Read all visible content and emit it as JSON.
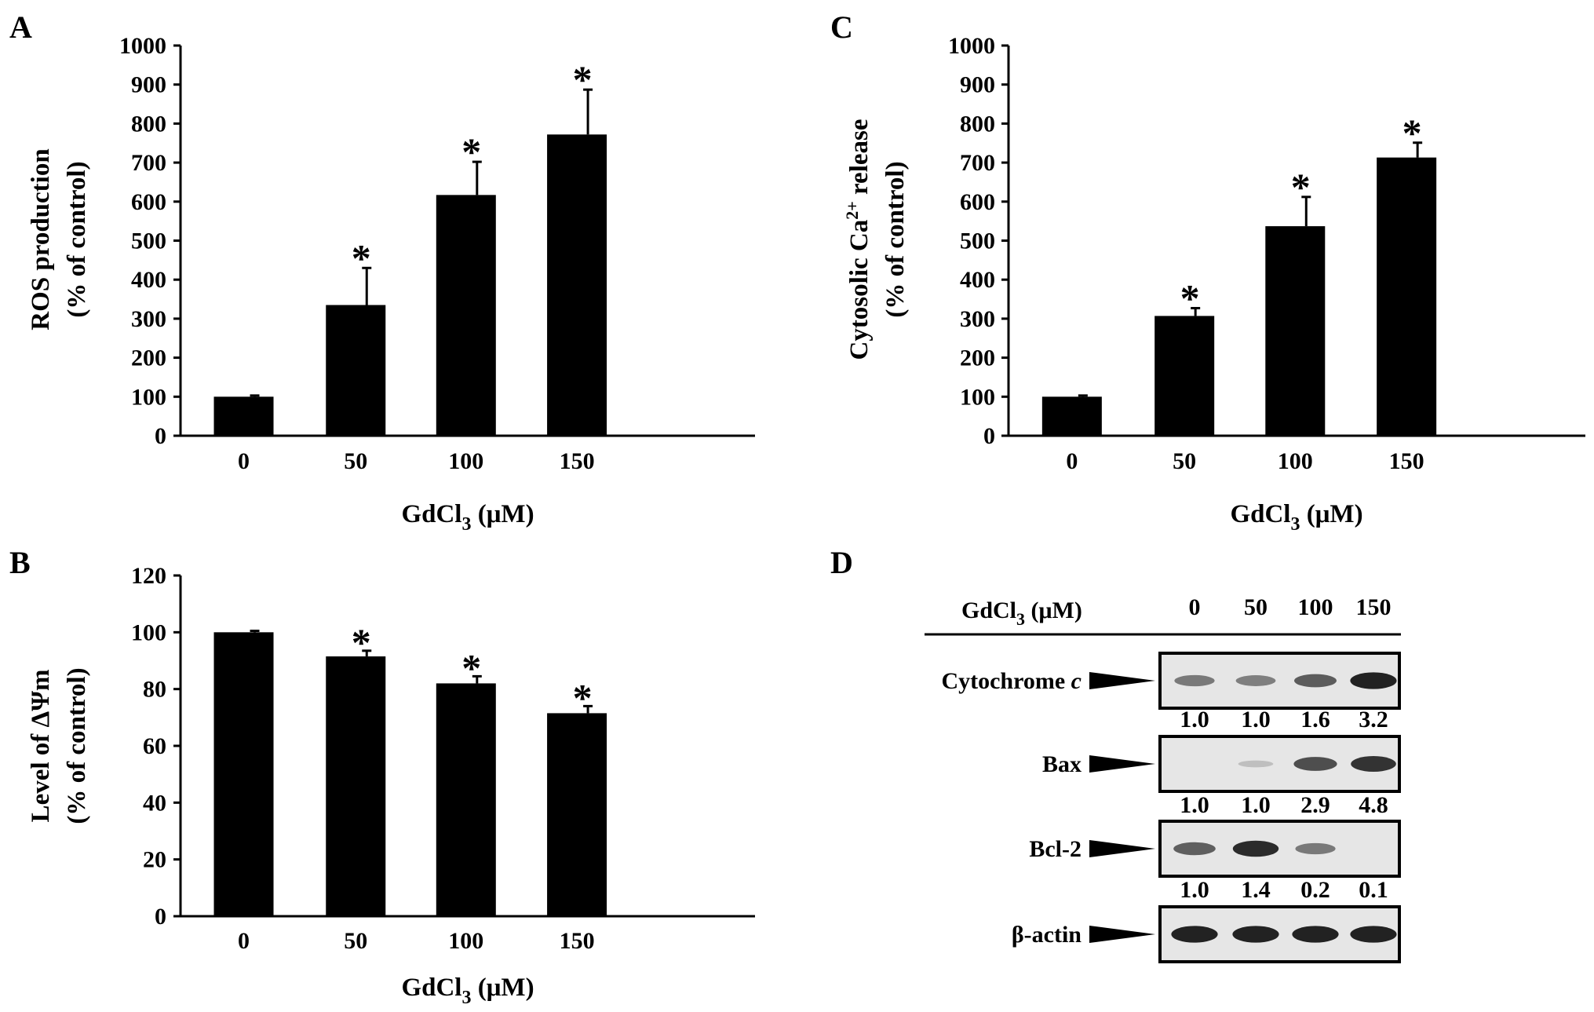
{
  "chart_data": [
    {
      "panel": "A",
      "type": "bar",
      "categories": [
        "0",
        "50",
        "100",
        "150"
      ],
      "values": [
        100,
        335,
        617,
        772
      ],
      "errors": [
        3,
        95,
        85,
        115
      ],
      "significance": [
        "",
        "*",
        "*",
        "*"
      ],
      "ylabel_line1": "ROS production",
      "ylabel_line2": "(% of control)",
      "xlabel_main": "GdCl",
      "xlabel_sub": "3",
      "xlabel_unit": " (μM)",
      "ylim": [
        0,
        1000
      ],
      "yticks": [
        0,
        100,
        200,
        300,
        400,
        500,
        600,
        700,
        800,
        900,
        1000
      ]
    },
    {
      "panel": "B",
      "type": "bar",
      "categories": [
        "0",
        "50",
        "100",
        "150"
      ],
      "values": [
        100,
        91.5,
        82,
        71.5
      ],
      "errors": [
        0.5,
        2,
        2.5,
        2.5
      ],
      "significance": [
        "",
        "*",
        "*",
        "*"
      ],
      "ylabel_line1": "Level of ΔΨm",
      "ylabel_line2": "(% of control)",
      "xlabel_main": "GdCl",
      "xlabel_sub": "3",
      "xlabel_unit": " (μM)",
      "ylim": [
        0,
        120
      ],
      "yticks": [
        0,
        20,
        40,
        60,
        80,
        100,
        120
      ]
    },
    {
      "panel": "C",
      "type": "bar",
      "categories": [
        "0",
        "50",
        "100",
        "150"
      ],
      "values": [
        100,
        307,
        537,
        713
      ],
      "errors": [
        3,
        20,
        75,
        38
      ],
      "significance": [
        "",
        "*",
        "*",
        "*"
      ],
      "ylabel_line1_main": "Cytosolic Ca",
      "ylabel_line1_sup": "2+",
      "ylabel_line1_tail": " release",
      "ylabel_line2": "(% of control)",
      "xlabel_main": "GdCl",
      "xlabel_sub": "3",
      "xlabel_unit": " (μM)",
      "ylim": [
        0,
        1000
      ],
      "yticks": [
        0,
        100,
        200,
        300,
        400,
        500,
        600,
        700,
        800,
        900,
        1000
      ]
    }
  ],
  "western_blot": {
    "panel": "D",
    "header_main": "GdCl",
    "header_sub": "3",
    "header_unit": " (μM)",
    "lanes": [
      "0",
      "50",
      "100",
      "150"
    ],
    "rows": [
      {
        "label": "Cytochrome ",
        "label_italic": "c",
        "intensity": [
          0.45,
          0.42,
          0.62,
          0.95
        ],
        "quant": [
          "1.0",
          "1.0",
          "1.6",
          "3.2"
        ]
      },
      {
        "label": "Bax",
        "label_italic": "",
        "intensity": [
          0.0,
          0.05,
          0.7,
          0.85
        ],
        "quant": [
          "1.0",
          "1.0",
          "2.9",
          "4.8"
        ]
      },
      {
        "label": "Bcl-2",
        "label_italic": "",
        "intensity": [
          0.6,
          0.9,
          0.45,
          0.0
        ],
        "quant": [
          "1.0",
          "1.4",
          "0.2",
          "0.1"
        ]
      },
      {
        "label": "β-actin",
        "label_italic": "",
        "intensity": [
          0.95,
          0.95,
          0.95,
          0.95
        ],
        "quant": []
      }
    ]
  },
  "colors": {
    "bar": "#000000",
    "axis": "#000000",
    "background": "#ffffff"
  }
}
